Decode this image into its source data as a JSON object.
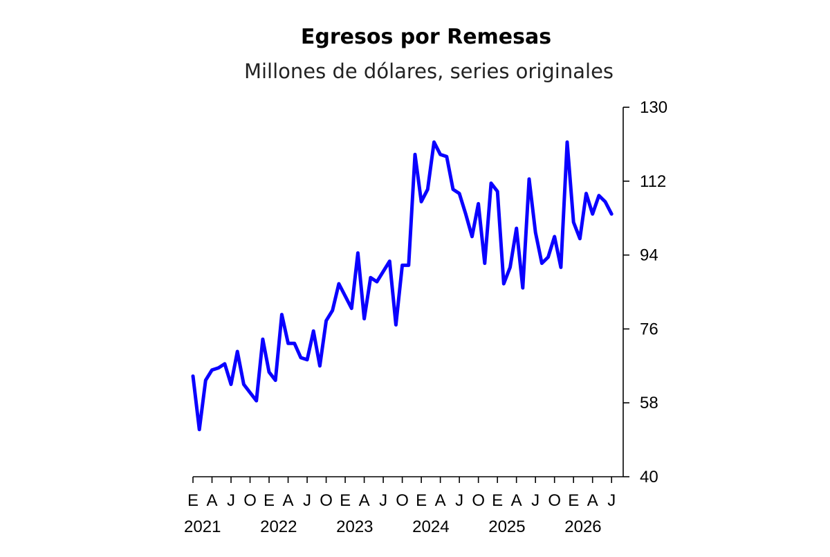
{
  "chart_data": {
    "type": "line",
    "title": "Egresos por Remesas",
    "subtitle": "Millones de dólares, series originales",
    "xlabel": "",
    "ylabel": "",
    "ylim": [
      40,
      130
    ],
    "yticks": [
      40,
      58,
      76,
      94,
      112,
      130
    ],
    "ytick_labels": [
      "40",
      "58",
      "76",
      "94",
      "112",
      "130"
    ],
    "x_month_labels": [
      "E",
      "A",
      "J",
      "O",
      "E",
      "A",
      "J",
      "O",
      "E",
      "A",
      "J",
      "O",
      "E",
      "A",
      "J",
      "O",
      "E",
      "A",
      "J",
      "O",
      "E",
      "A",
      "J"
    ],
    "x_year_labels": [
      "2021",
      "2022",
      "2023",
      "2024",
      "2025",
      "2026"
    ],
    "grid": false,
    "legend": "none",
    "colors": {
      "series": "#0a00ff",
      "axis": "#000000",
      "text": "#000000"
    },
    "series": [
      {
        "start": "2021-01",
        "values": [
          64.5,
          51.5,
          63.5,
          66,
          66.5,
          67.5,
          62.5,
          70.5,
          62.5,
          60.5,
          58.5,
          73.5,
          65.5,
          63.5,
          79.5,
          72.5,
          72.5,
          69,
          68.5,
          75.5,
          67,
          78,
          80.5,
          87,
          84,
          81,
          94.5,
          78.5,
          88.5,
          87.5,
          90,
          92.5,
          77,
          91.5,
          91.5,
          118.5,
          107,
          110,
          121.5,
          118.5,
          118,
          110,
          109,
          104,
          98.5,
          106.5,
          92,
          111.5,
          109.5,
          87,
          91,
          100.5,
          86,
          112.5,
          99.5,
          92,
          93.5,
          98.5,
          91,
          121.5,
          102,
          98,
          109,
          104,
          108.5,
          107,
          104
        ]
      }
    ]
  }
}
